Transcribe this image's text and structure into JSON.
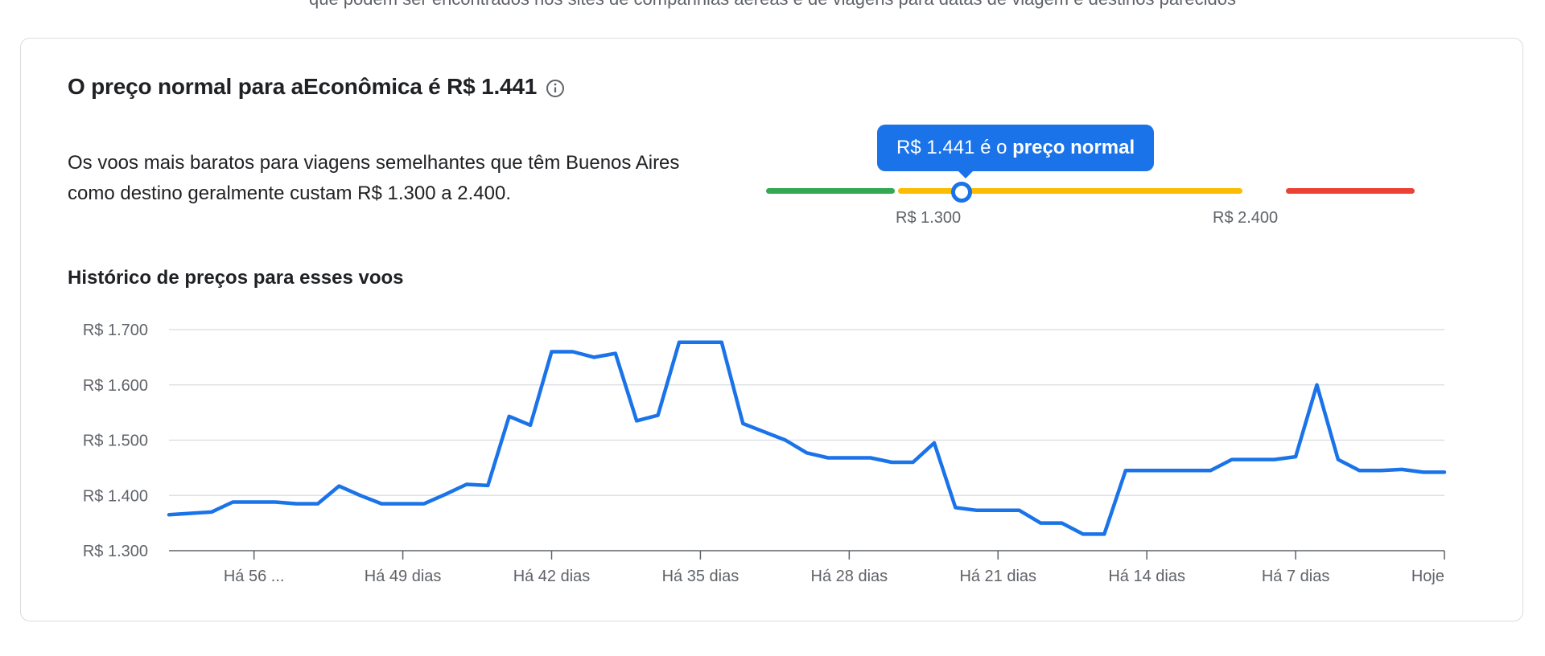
{
  "top_cutoff_text": "que podem ser encontrados nos sites de companhias aéreas e de viagens para datas de viagem e destinos parecidos",
  "headline": {
    "text": "O preço normal para aEconômica é R$ 1.441"
  },
  "description": "Os voos mais baratos para viagens semelhantes que têm Buenos Aires como destino geralmente custam R$ 1.300 a 2.400.",
  "price_range": {
    "tooltip_value": "R$ 1.441 é o",
    "tooltip_emphasis": "preço normal",
    "low_label": "R$ 1.300",
    "high_label": "R$ 2.400",
    "current_value": 1441,
    "colors": {
      "low": "#34a853",
      "normal": "#fbbc04",
      "high": "#ea4335",
      "marker": "#1a73e8"
    }
  },
  "history_title": "Histórico de preços para esses voos",
  "chart_data": {
    "type": "line",
    "title": "Histórico de preços para esses voos",
    "xlabel": "",
    "ylabel": "",
    "ylim": [
      1300,
      1700
    ],
    "y_ticks": [
      1300,
      1400,
      1500,
      1600,
      1700
    ],
    "y_tick_labels": [
      "R$ 1.300",
      "R$ 1.400",
      "R$ 1.500",
      "R$ 1.600",
      "R$ 1.700"
    ],
    "x_unit": "dias atrás",
    "x_range": [
      60,
      0
    ],
    "x_ticks": [
      56,
      49,
      42,
      35,
      28,
      21,
      14,
      7,
      0
    ],
    "x_tick_labels": [
      "Há 56 ...",
      "Há 49 dias",
      "Há 42 dias",
      "Há 35 dias",
      "Há 28 dias",
      "Há 21 dias",
      "Há 14 dias",
      "Há 7 dias",
      "Hoje"
    ],
    "grid": true,
    "line_color": "#1a73e8",
    "series": [
      {
        "x": [
          60,
          58,
          57,
          56,
          55,
          54,
          53,
          52,
          51,
          50,
          49,
          48,
          47,
          46,
          45,
          44,
          43,
          42,
          41,
          40,
          39,
          38,
          37,
          36,
          35,
          34,
          33,
          32,
          31,
          30,
          29,
          28,
          27,
          26,
          25,
          24,
          23,
          22,
          21,
          20,
          19,
          18,
          17,
          16,
          15,
          14,
          13,
          12,
          11,
          10,
          9,
          8,
          7,
          6,
          5,
          4,
          3,
          2,
          1,
          0
        ],
        "values": [
          1365,
          1370,
          1388,
          1388,
          1388,
          1385,
          1385,
          1417,
          1400,
          1385,
          1385,
          1385,
          1402,
          1420,
          1418,
          1543,
          1527,
          1660,
          1660,
          1650,
          1657,
          1535,
          1545,
          1677,
          1677,
          1677,
          1530,
          1515,
          1500,
          1477,
          1468,
          1468,
          1468,
          1460,
          1460,
          1495,
          1378,
          1373,
          1373,
          1373,
          1350,
          1350,
          1330,
          1330,
          1445,
          1445,
          1445,
          1445,
          1445,
          1465,
          1465,
          1465,
          1470,
          1600,
          1465,
          1445,
          1445,
          1447,
          1442,
          1442
        ]
      }
    ]
  }
}
